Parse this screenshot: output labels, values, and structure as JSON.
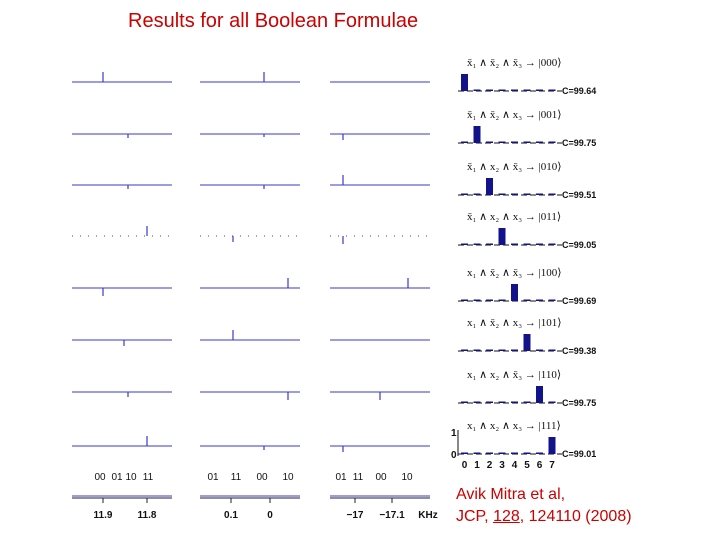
{
  "title": "Results for all Boolean Formulae",
  "formulas": [
    {
      "formula": "x̄₁ ∧ x̄₂ ∧ x̄₃ → |000⟩",
      "confidence": "C=99.64"
    },
    {
      "formula": "x̄₁ ∧ x̄₂ ∧ x₃ → |001⟩",
      "confidence": "C=99.75"
    },
    {
      "formula": "x̄₁ ∧ x₂ ∧ x̄₃ → |010⟩",
      "confidence": "C=99.51"
    },
    {
      "formula": "x̄₁ ∧ x₂ ∧ x₃ → |011⟩",
      "confidence": "C=99.05"
    },
    {
      "formula": "x₁ ∧ x̄₂ ∧ x̄₃ → |100⟩",
      "confidence": "C=99.69"
    },
    {
      "formula": "x₁ ∧ x̄₂ ∧ x₃ → |101⟩",
      "confidence": "C=99.38"
    },
    {
      "formula": "x₁ ∧ x₂ ∧ x̄₃ → |110⟩",
      "confidence": "C=99.75"
    },
    {
      "formula": "x₁ ∧ x₂ ∧ x₃ → |111⟩",
      "confidence": "C=99.01"
    }
  ],
  "histogram_axis": {
    "y_ticks": [
      "1",
      "0"
    ],
    "x_ticks": [
      "0",
      "1",
      "2",
      "3",
      "4",
      "5",
      "6",
      "7"
    ]
  },
  "spectra": {
    "transition_labels": [
      [
        "00",
        "01",
        "10",
        "11"
      ],
      [
        "01",
        "11",
        "00",
        "10"
      ],
      [
        "01",
        "11",
        "00",
        "10"
      ]
    ],
    "axis_ticks": [
      [
        "11.9",
        "11.8"
      ],
      [
        "0.1",
        "0"
      ],
      [
        "−17",
        "−17.1"
      ]
    ],
    "unit": "KHz"
  },
  "citation": {
    "line1": "Avik Mitra et al,",
    "journal": "JCP, ",
    "volume": "128",
    "rest": ", 124110 (2008)"
  }
}
